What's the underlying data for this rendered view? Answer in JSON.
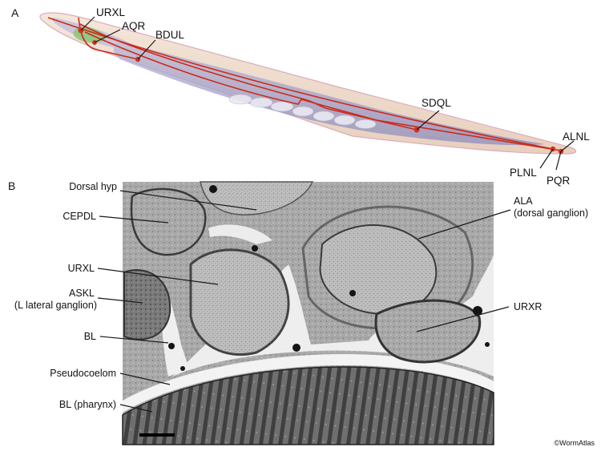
{
  "panel_a": {
    "letter": "A",
    "labels": {
      "urxl": "URXL",
      "aqr": "AQR",
      "bdul": "BDUL",
      "sdql": "SDQL",
      "alnl": "ALNL",
      "plnl": "PLNL",
      "pqr": "PQR"
    },
    "colors": {
      "neuron": "#cc2a1a",
      "body": "#efd9c8",
      "pharynx": "#c6c0dc",
      "intestine": "#9fa0c8",
      "head": "#8fc77b"
    }
  },
  "panel_b": {
    "letter": "B",
    "left_labels": {
      "dorsal_hyp": "Dorsal hyp",
      "cepdl": "CEPDL",
      "urxl": "URXL",
      "askl_1": "ASKL",
      "askl_2": "(L lateral ganglion)",
      "bl": "BL",
      "pseudocoelom": "Pseudocoelom",
      "bl_pharynx": "BL (pharynx)"
    },
    "right_labels": {
      "ala_1": "ALA",
      "ala_2": "(dorsal ganglion)",
      "urxr": "URXR"
    }
  },
  "credit": "©WormAtlas"
}
